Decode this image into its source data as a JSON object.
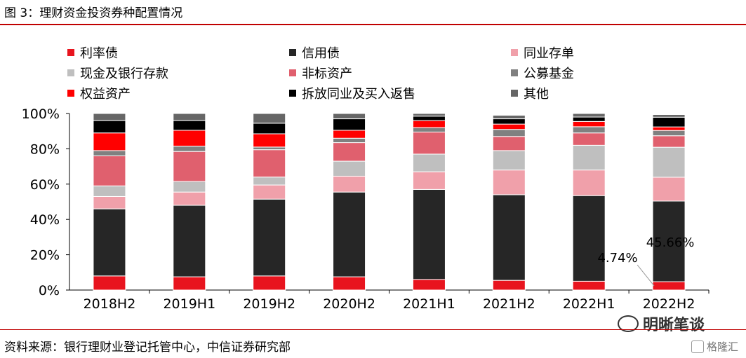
{
  "header": {
    "title": "图 3：理财资金投资券种配置情况"
  },
  "footer": {
    "source": "资料来源：银行理财业登记托管中心，中信证券研究部"
  },
  "watermark": {
    "text": "明晰笔谈",
    "brand": "格隆汇"
  },
  "chart_data": {
    "type": "bar",
    "stacked": true,
    "categories": [
      "2018H2",
      "2019H1",
      "2019H2",
      "2020H2",
      "2021H1",
      "2021H2",
      "2022H1",
      "2022H2"
    ],
    "ylim": [
      0,
      100
    ],
    "yticks": [
      "0%",
      "20%",
      "40%",
      "60%",
      "80%",
      "100%"
    ],
    "legend_position": "top",
    "series": [
      {
        "name": "利率债",
        "color": "#e8141e",
        "values": [
          8,
          7.5,
          8,
          7.5,
          6,
          5.5,
          5,
          4.74
        ]
      },
      {
        "name": "信用债",
        "color": "#262626",
        "values": [
          38,
          40.5,
          43.5,
          48,
          51,
          48.5,
          48.5,
          45.66
        ]
      },
      {
        "name": "同业存单",
        "color": "#f0a0aa",
        "values": [
          7,
          7.5,
          8,
          9,
          10,
          14,
          14.5,
          13.5
        ]
      },
      {
        "name": "现金及银行存款",
        "color": "#bfbfbf",
        "values": [
          6,
          6,
          4.5,
          8.5,
          10,
          11,
          14,
          17
        ]
      },
      {
        "name": "非标资产",
        "color": "#e0606e",
        "values": [
          17,
          17,
          15.5,
          10.5,
          12.5,
          8,
          7,
          6.5
        ]
      },
      {
        "name": "公募基金",
        "color": "#808080",
        "values": [
          3,
          3,
          1.5,
          2.5,
          2.5,
          4,
          3.5,
          3
        ]
      },
      {
        "name": "权益资产",
        "color": "#ff0000",
        "values": [
          10,
          9,
          7.5,
          4.5,
          4,
          3,
          3,
          2
        ]
      },
      {
        "name": "拆放同业及买入返售",
        "color": "#000000",
        "values": [
          7,
          5.5,
          6,
          6.5,
          2.5,
          3,
          2.5,
          5.5
        ]
      },
      {
        "name": "其他",
        "color": "#666666",
        "values": [
          4,
          4,
          5.5,
          3,
          1.5,
          2,
          2,
          1.5
        ]
      }
    ],
    "annotations": [
      {
        "text": "4.74%",
        "category": "2022H2",
        "series": "利率债"
      },
      {
        "text": "45.66%",
        "category": "2022H2",
        "series": "信用债"
      }
    ]
  }
}
